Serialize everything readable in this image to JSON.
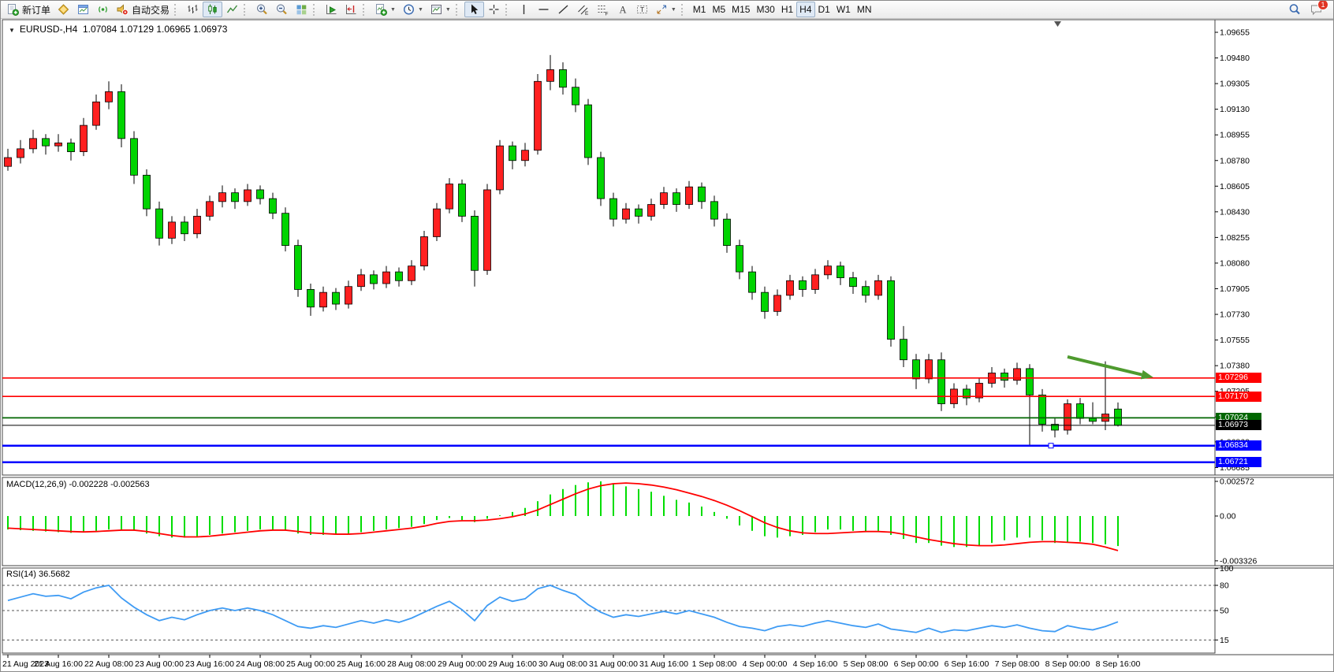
{
  "toolbar": {
    "groups": [
      {
        "items": [
          {
            "name": "new-order",
            "icon": "new-order-icon",
            "label": "新订单"
          },
          {
            "name": "chart-style",
            "icon": "gold-diamond-icon"
          },
          {
            "name": "market-watch",
            "icon": "window-icon"
          },
          {
            "name": "signals",
            "icon": "signal-icon"
          },
          {
            "name": "autotrading",
            "icon": "autotrade-icon",
            "label": "自动交易"
          }
        ]
      },
      {
        "items": [
          {
            "name": "bar-chart",
            "icon": "bars-chart-icon"
          },
          {
            "name": "candle-chart",
            "icon": "candles-chart-icon",
            "pressed": true
          },
          {
            "name": "line-chart",
            "icon": "line-chart-icon"
          }
        ]
      },
      {
        "items": [
          {
            "name": "zoom-in",
            "icon": "zoom-in-icon"
          },
          {
            "name": "zoom-out",
            "icon": "zoom-out-icon"
          },
          {
            "name": "tile-windows",
            "icon": "tile-windows-icon"
          }
        ]
      },
      {
        "items": [
          {
            "name": "auto-scroll",
            "icon": "autoscroll-icon"
          },
          {
            "name": "chart-shift",
            "icon": "chart-shift-icon"
          }
        ]
      },
      {
        "items": [
          {
            "name": "indicators",
            "icon": "indicators-icon",
            "dropdown": true
          },
          {
            "name": "periods",
            "icon": "clock-icon",
            "dropdown": true
          },
          {
            "name": "templates",
            "icon": "template-icon",
            "dropdown": true
          }
        ]
      },
      {
        "items": [
          {
            "name": "cursor",
            "icon": "cursor-icon",
            "pressed": true
          },
          {
            "name": "crosshair",
            "icon": "crosshair-icon"
          }
        ]
      },
      {
        "items": [
          {
            "name": "vertical-line",
            "icon": "vline-icon"
          },
          {
            "name": "horizontal-line",
            "icon": "hline-icon"
          },
          {
            "name": "trendline",
            "icon": "trendline-icon"
          },
          {
            "name": "equidistant-channel",
            "icon": "channel-icon"
          },
          {
            "name": "fibonacci",
            "icon": "fibonacci-icon"
          },
          {
            "name": "text",
            "icon": "text-icon"
          },
          {
            "name": "text-label",
            "icon": "label-icon"
          },
          {
            "name": "arrows",
            "icon": "arrows-icon",
            "dropdown": true
          }
        ]
      },
      {
        "items": [
          {
            "name": "tf-m1",
            "label": "M1"
          },
          {
            "name": "tf-m5",
            "label": "M5"
          },
          {
            "name": "tf-m15",
            "label": "M15"
          },
          {
            "name": "tf-m30",
            "label": "M30"
          },
          {
            "name": "tf-h1",
            "label": "H1"
          },
          {
            "name": "tf-h4",
            "label": "H4",
            "pressed": true
          },
          {
            "name": "tf-d1",
            "label": "D1"
          },
          {
            "name": "tf-w1",
            "label": "W1"
          },
          {
            "name": "tf-mn",
            "label": "MN"
          }
        ]
      }
    ],
    "right_items": [
      {
        "name": "search",
        "icon": "search-icon"
      },
      {
        "name": "notifications",
        "icon": "chat-icon",
        "badge": "1"
      }
    ]
  },
  "chart_data": {
    "type": "candlestick",
    "symbol": "EURUSD-",
    "timeframe": "H4",
    "title_symbol": "EURUSD-,H4",
    "title_ohlc": "1.07084 1.07129 1.06965 1.06973",
    "last_candle": {
      "open": 1.07084,
      "high": 1.07129,
      "low": 1.06965,
      "close": 1.06973
    },
    "y_ticks": [
      "1.09655",
      "1.09480",
      "1.09305",
      "1.09130",
      "1.08955",
      "1.08780",
      "1.08605",
      "1.08430",
      "1.08255",
      "1.08080",
      "1.07905",
      "1.07730",
      "1.07555",
      "1.07380",
      "1.07205",
      "1.07030",
      "1.06860",
      "1.06685"
    ],
    "x_labels": [
      "21 Aug 2023",
      "21 Aug 16:00",
      "22 Aug 08:00",
      "23 Aug 00:00",
      "23 Aug 16:00",
      "24 Aug 08:00",
      "25 Aug 00:00",
      "25 Aug 16:00",
      "28 Aug 08:00",
      "29 Aug 00:00",
      "29 Aug 16:00",
      "30 Aug 08:00",
      "31 Aug 00:00",
      "31 Aug 16:00",
      "1 Sep 08:00",
      "4 Sep 00:00",
      "4 Sep 16:00",
      "5 Sep 08:00",
      "6 Sep 00:00",
      "6 Sep 16:00",
      "7 Sep 08:00",
      "8 Sep 00:00",
      "8 Sep 16:00"
    ],
    "candles": [
      [
        1.0874,
        1.0886,
        1.0871,
        1.088
      ],
      [
        1.088,
        1.0892,
        1.0876,
        1.0886
      ],
      [
        1.0886,
        1.0899,
        1.0883,
        1.0893
      ],
      [
        1.0893,
        1.0896,
        1.0882,
        1.0888
      ],
      [
        1.0888,
        1.0896,
        1.0884,
        1.089
      ],
      [
        1.089,
        1.0893,
        1.0878,
        1.0884
      ],
      [
        1.0884,
        1.0907,
        1.0881,
        1.0902
      ],
      [
        1.0902,
        1.0923,
        1.0899,
        1.0918
      ],
      [
        1.0918,
        1.0932,
        1.0913,
        1.0925
      ],
      [
        1.0925,
        1.093,
        1.0887,
        1.0893
      ],
      [
        1.0893,
        1.0898,
        1.0862,
        1.0868
      ],
      [
        1.0868,
        1.0872,
        1.084,
        1.0845
      ],
      [
        1.0845,
        1.085,
        1.082,
        1.0825
      ],
      [
        1.0825,
        1.084,
        1.0821,
        1.0836
      ],
      [
        1.0836,
        1.084,
        1.0823,
        1.0828
      ],
      [
        1.0828,
        1.0845,
        1.0825,
        1.084
      ],
      [
        1.084,
        1.0854,
        1.0837,
        1.085
      ],
      [
        1.085,
        1.0861,
        1.0846,
        1.0856
      ],
      [
        1.0856,
        1.0859,
        1.0845,
        1.085
      ],
      [
        1.085,
        1.0862,
        1.0847,
        1.0858
      ],
      [
        1.0858,
        1.0861,
        1.0848,
        1.0852
      ],
      [
        1.0852,
        1.0856,
        1.0838,
        1.0842
      ],
      [
        1.0842,
        1.0846,
        1.0816,
        1.082
      ],
      [
        1.082,
        1.0824,
        1.0785,
        1.079
      ],
      [
        1.079,
        1.0794,
        1.0772,
        1.0778
      ],
      [
        1.0778,
        1.0792,
        1.0775,
        1.0788
      ],
      [
        1.0788,
        1.0791,
        1.0776,
        1.078
      ],
      [
        1.078,
        1.0796,
        1.0777,
        1.0792
      ],
      [
        1.0792,
        1.0804,
        1.0789,
        1.08
      ],
      [
        1.08,
        1.0803,
        1.079,
        1.0794
      ],
      [
        1.0794,
        1.0806,
        1.0791,
        1.0802
      ],
      [
        1.0802,
        1.0805,
        1.0792,
        1.0796
      ],
      [
        1.0796,
        1.081,
        1.0793,
        1.0806
      ],
      [
        1.0806,
        1.083,
        1.0803,
        1.0826
      ],
      [
        1.0826,
        1.0849,
        1.0823,
        1.0845
      ],
      [
        1.0845,
        1.0866,
        1.0842,
        1.0862
      ],
      [
        1.0862,
        1.0865,
        1.0836,
        1.084
      ],
      [
        1.084,
        1.0844,
        1.0792,
        1.0803
      ],
      [
        1.0803,
        1.0862,
        1.08,
        1.0858
      ],
      [
        1.0858,
        1.0892,
        1.0855,
        1.0888
      ],
      [
        1.0888,
        1.0891,
        1.0872,
        1.0878
      ],
      [
        1.0878,
        1.089,
        1.0874,
        1.0885
      ],
      [
        1.0885,
        1.0937,
        1.0882,
        1.0932
      ],
      [
        1.0932,
        1.095,
        1.0926,
        1.094
      ],
      [
        1.094,
        1.0945,
        1.0923,
        1.0928
      ],
      [
        1.0928,
        1.0934,
        1.0911,
        1.0916
      ],
      [
        1.0916,
        1.092,
        1.0875,
        1.088
      ],
      [
        1.088,
        1.0884,
        1.0847,
        1.0852
      ],
      [
        1.0852,
        1.0856,
        1.0833,
        1.0838
      ],
      [
        1.0838,
        1.0849,
        1.0835,
        1.0845
      ],
      [
        1.0845,
        1.0848,
        1.0835,
        1.084
      ],
      [
        1.084,
        1.0852,
        1.0837,
        1.0848
      ],
      [
        1.0848,
        1.086,
        1.0845,
        1.0856
      ],
      [
        1.0856,
        1.0859,
        1.0843,
        1.0848
      ],
      [
        1.0848,
        1.0864,
        1.0845,
        1.086
      ],
      [
        1.086,
        1.0863,
        1.0845,
        1.085
      ],
      [
        1.085,
        1.0854,
        1.0833,
        1.0838
      ],
      [
        1.0838,
        1.0842,
        1.0815,
        1.082
      ],
      [
        1.082,
        1.0824,
        1.0797,
        1.0802
      ],
      [
        1.0802,
        1.0806,
        1.0783,
        1.0788
      ],
      [
        1.0788,
        1.0792,
        1.077,
        1.0775
      ],
      [
        1.0775,
        1.079,
        1.0772,
        1.0786
      ],
      [
        1.0786,
        1.08,
        1.0783,
        1.0796
      ],
      [
        1.0796,
        1.0799,
        1.0785,
        1.079
      ],
      [
        1.079,
        1.0804,
        1.0787,
        1.08
      ],
      [
        1.08,
        1.081,
        1.0797,
        1.0806
      ],
      [
        1.0806,
        1.0809,
        1.0793,
        1.0798
      ],
      [
        1.0798,
        1.0802,
        1.0787,
        1.0792
      ],
      [
        1.0792,
        1.0796,
        1.0781,
        1.0786
      ],
      [
        1.0786,
        1.08,
        1.0783,
        1.0796
      ],
      [
        1.0796,
        1.0799,
        1.0751,
        1.0756
      ],
      [
        1.0756,
        1.0765,
        1.0737,
        1.0742
      ],
      [
        1.0742,
        1.0746,
        1.0722,
        1.0729
      ],
      [
        1.0729,
        1.0746,
        1.0726,
        1.0742
      ],
      [
        1.0742,
        1.0747,
        1.0707,
        1.0712
      ],
      [
        1.0712,
        1.0726,
        1.0709,
        1.0722
      ],
      [
        1.0722,
        1.0725,
        1.0711,
        1.0716
      ],
      [
        1.0716,
        1.073,
        1.0713,
        1.0726
      ],
      [
        1.0726,
        1.0737,
        1.0723,
        1.0733
      ],
      [
        1.0733,
        1.0736,
        1.0723,
        1.0728
      ],
      [
        1.0728,
        1.074,
        1.0725,
        1.0736
      ],
      [
        1.0736,
        1.0739,
        1.0684,
        1.0718
      ],
      [
        1.0718,
        1.0722,
        1.0693,
        1.0698
      ],
      [
        1.0698,
        1.0702,
        1.0689,
        1.0694
      ],
      [
        1.0694,
        1.0715,
        1.0691,
        1.0712
      ],
      [
        1.0712,
        1.0716,
        1.0698,
        1.0702
      ],
      [
        1.0702,
        1.0713,
        1.0698,
        1.07
      ],
      [
        1.07,
        1.0741,
        1.0694,
        1.0705
      ],
      [
        1.07084,
        1.07129,
        1.06965,
        1.06973
      ]
    ],
    "horizontal_lines": [
      {
        "price": 1.07296,
        "label": "1.07296",
        "color": "#ff0000",
        "width": 1.6
      },
      {
        "price": 1.0717,
        "label": "1.07170",
        "color": "#ff0000",
        "width": 1.6
      },
      {
        "price": 1.07024,
        "label": "1.07024",
        "color": "#006600",
        "width": 1.8
      },
      {
        "price": 1.06834,
        "label": "1.06834",
        "color": "#0000ff",
        "width": 2.5,
        "handle": true
      },
      {
        "price": 1.06721,
        "label": "1.06721",
        "color": "#0000ff",
        "width": 2.5
      }
    ],
    "current_price_line": {
      "price": 1.06973,
      "label": "1.06973",
      "color": "#000000"
    },
    "arrow_annotation": {
      "from_bar": 84,
      "from_price": 1.0744,
      "to_bar": 90.8,
      "to_price": 1.073,
      "color": "#4e9a2e"
    },
    "macd": {
      "label": "MACD(12,26,9)",
      "values": "-0.002228 -0.002563",
      "axis_labels": [
        "0.002572",
        "0.00",
        "-0.003326"
      ],
      "unit": 0.001,
      "histogram": [
        -1.0,
        -1.05,
        -1.1,
        -1.15,
        -1.2,
        -1.25,
        -1.2,
        -1.1,
        -1.0,
        -1.0,
        -1.1,
        -1.3,
        -1.5,
        -1.6,
        -1.6,
        -1.5,
        -1.4,
        -1.3,
        -1.2,
        -1.1,
        -1.0,
        -1.0,
        -1.1,
        -1.3,
        -1.4,
        -1.4,
        -1.4,
        -1.3,
        -1.2,
        -1.1,
        -1.0,
        -0.9,
        -0.8,
        -0.6,
        -0.3,
        -0.15,
        -0.3,
        -0.45,
        -0.2,
        0.05,
        0.3,
        0.6,
        1.1,
        1.6,
        2.0,
        2.3,
        2.5,
        2.57,
        2.4,
        2.2,
        2.0,
        1.8,
        1.5,
        1.2,
        1.0,
        0.7,
        0.3,
        -0.2,
        -0.7,
        -1.1,
        -1.5,
        -1.6,
        -1.5,
        -1.4,
        -1.2,
        -1.0,
        -1.0,
        -1.1,
        -1.2,
        -1.1,
        -1.4,
        -1.7,
        -2.0,
        -2.0,
        -2.2,
        -2.3,
        -2.3,
        -2.2,
        -2.0,
        -1.8,
        -1.6,
        -1.6,
        -1.8,
        -2.0,
        -1.9,
        -1.9,
        -2.0,
        -2.1,
        -2.228
      ],
      "signal": [
        -0.9,
        -0.95,
        -1.0,
        -1.05,
        -1.1,
        -1.15,
        -1.18,
        -1.15,
        -1.1,
        -1.05,
        -1.05,
        -1.15,
        -1.3,
        -1.45,
        -1.55,
        -1.55,
        -1.5,
        -1.4,
        -1.3,
        -1.2,
        -1.1,
        -1.05,
        -1.05,
        -1.15,
        -1.25,
        -1.3,
        -1.35,
        -1.35,
        -1.3,
        -1.2,
        -1.1,
        -1.0,
        -0.9,
        -0.75,
        -0.55,
        -0.4,
        -0.35,
        -0.35,
        -0.3,
        -0.2,
        -0.05,
        0.15,
        0.45,
        0.85,
        1.25,
        1.65,
        2.0,
        2.25,
        2.4,
        2.45,
        2.4,
        2.3,
        2.15,
        1.95,
        1.7,
        1.45,
        1.15,
        0.8,
        0.4,
        -0.05,
        -0.5,
        -0.85,
        -1.1,
        -1.25,
        -1.3,
        -1.3,
        -1.25,
        -1.2,
        -1.15,
        -1.15,
        -1.2,
        -1.35,
        -1.55,
        -1.75,
        -1.9,
        -2.05,
        -2.15,
        -2.2,
        -2.2,
        -2.15,
        -2.05,
        -1.95,
        -1.9,
        -1.9,
        -1.95,
        -2.0,
        -2.1,
        -2.3,
        -2.563
      ]
    },
    "rsi": {
      "label": "RSI(14)",
      "value": "36.5682",
      "axis_labels": [
        "100",
        "80",
        "50",
        "15"
      ],
      "dashed_levels": [
        80,
        50,
        15
      ],
      "values": [
        62,
        66,
        70,
        67,
        68,
        64,
        72,
        77,
        80,
        65,
        54,
        45,
        38,
        42,
        39,
        45,
        50,
        53,
        50,
        53,
        50,
        45,
        38,
        31,
        29,
        32,
        30,
        34,
        38,
        35,
        39,
        36,
        41,
        48,
        55,
        61,
        51,
        38,
        56,
        66,
        61,
        64,
        76,
        80,
        74,
        69,
        57,
        48,
        42,
        45,
        43,
        46,
        49,
        46,
        50,
        46,
        42,
        36,
        31,
        29,
        26,
        31,
        33,
        31,
        35,
        38,
        35,
        32,
        30,
        34,
        28,
        26,
        24,
        29,
        24,
        27,
        26,
        29,
        32,
        30,
        33,
        29,
        26,
        25,
        32,
        29,
        27,
        31,
        36.5682
      ]
    },
    "colors": {
      "bull": "#ff2020",
      "bear": "#00d400",
      "wick": "#000000",
      "macd_hist": "#00dd00",
      "macd_signal": "#ff0000",
      "rsi_line": "#3e9bf4",
      "arrow": "#4e9a2e",
      "bid_tag": "#000000"
    }
  }
}
